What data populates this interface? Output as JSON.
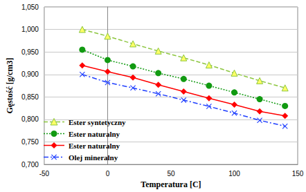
{
  "chart_data": {
    "type": "line",
    "x_label": "Temperatura [C]",
    "y_label": "Gęstość [g/cm3]",
    "x": [
      -20,
      0,
      20,
      40,
      60,
      80,
      100,
      120,
      140
    ],
    "series": [
      {
        "name": "Ester syntetyczny",
        "color": "#8cc63f",
        "marker": "triangle",
        "line_style": "dashed",
        "values": [
          1.0,
          0.985,
          0.968,
          0.952,
          0.937,
          0.921,
          0.903,
          0.886,
          0.87
        ]
      },
      {
        "name": "Ester naturalny",
        "color": "#119a11",
        "marker": "circle",
        "line_style": "dotted",
        "values": [
          0.955,
          0.932,
          0.918,
          0.903,
          0.89,
          0.875,
          0.86,
          0.845,
          0.83
        ]
      },
      {
        "name": "Ester naturalny",
        "color": "#ff0000",
        "marker": "diamond",
        "line_style": "solid",
        "values": [
          0.92,
          0.906,
          0.893,
          0.877,
          0.862,
          0.847,
          0.833,
          0.818,
          0.808
        ]
      },
      {
        "name": "Olej mineralny",
        "color": "#1f3fff",
        "marker": "x",
        "line_style": "dashdot",
        "values": [
          0.9,
          0.882,
          0.87,
          0.857,
          0.843,
          0.829,
          0.814,
          0.798,
          0.785
        ]
      }
    ],
    "xlim": [
      -50,
      150
    ],
    "xticks": [
      -50,
      0,
      50,
      100,
      150
    ],
    "ylim": [
      0.7,
      1.05
    ],
    "yticks": [
      {
        "value": 0.7,
        "label": "0,700"
      },
      {
        "value": 0.75,
        "label": "0,750"
      },
      {
        "value": 0.8,
        "label": "0,800"
      },
      {
        "value": 0.85,
        "label": "0,850"
      },
      {
        "value": 0.9,
        "label": "0,900"
      },
      {
        "value": 0.95,
        "label": "0,950"
      },
      {
        "value": 1.0,
        "label": "1,000"
      },
      {
        "value": 1.05,
        "label": "1,050"
      }
    ],
    "grid": true,
    "legend": "lower left"
  }
}
